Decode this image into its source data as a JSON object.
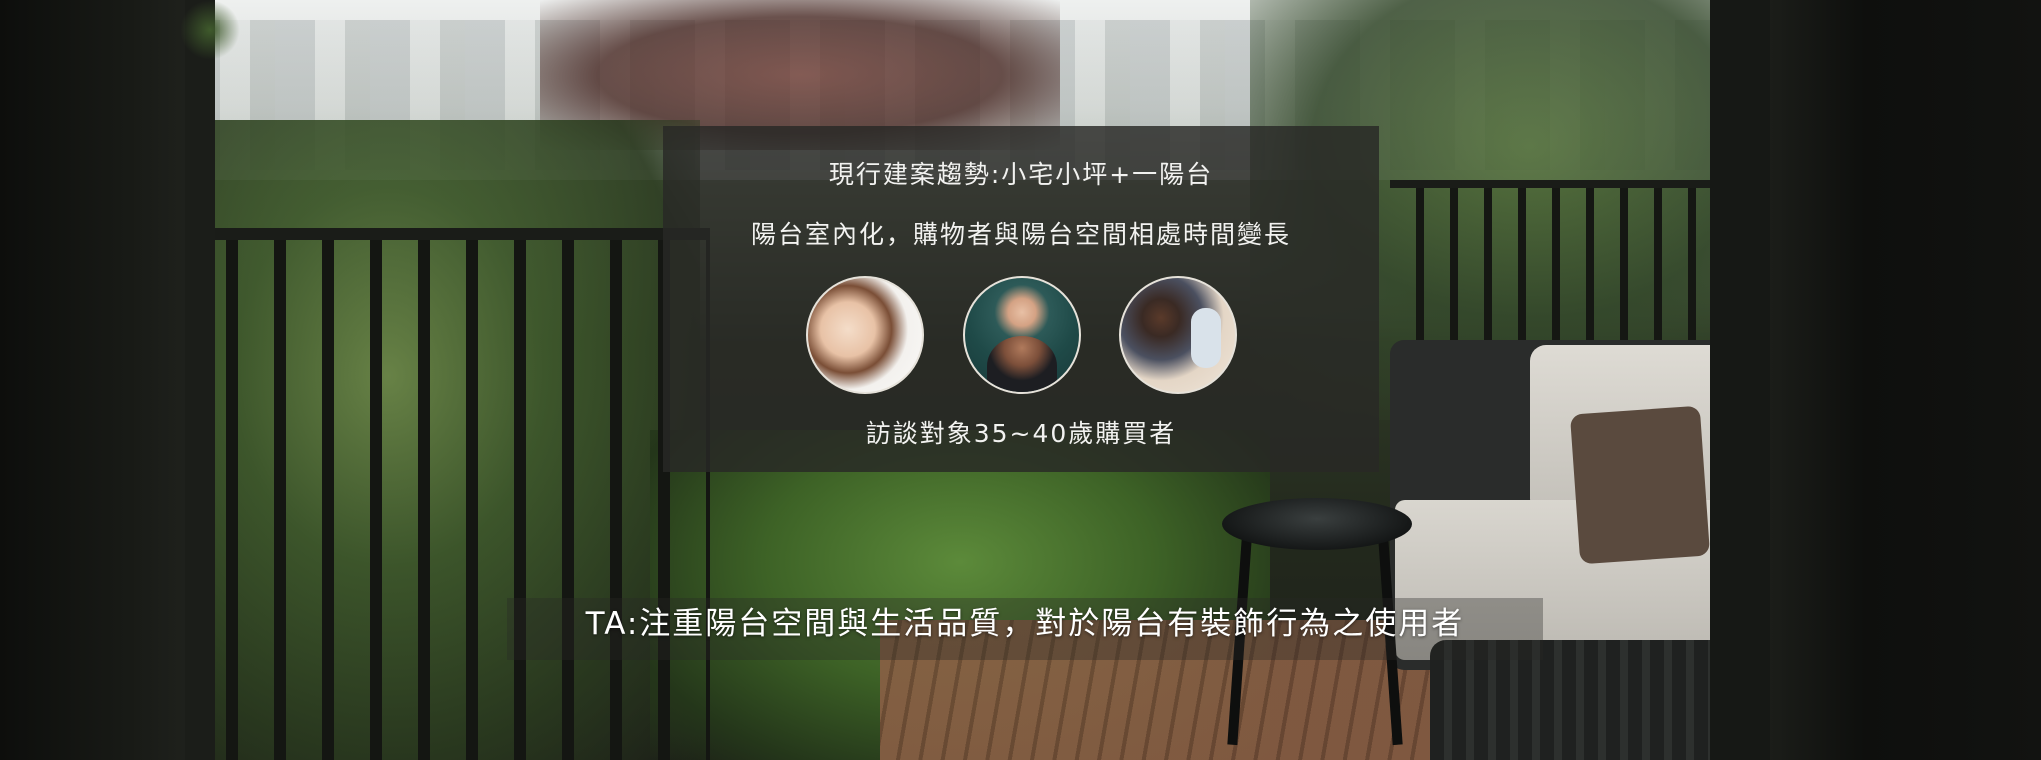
{
  "panel": {
    "title": "現行建案趨勢:小宅小坪+一陽台",
    "subtitle": "陽台室內化，購物者與陽台空間相處時間變長",
    "caption": "訪談對象35~40歲購買者",
    "avatars": [
      {
        "icon": "woman-with-child-photo"
      },
      {
        "icon": "father-carrying-baby-photo"
      },
      {
        "icon": "man-lying-with-baby-photo"
      }
    ]
  },
  "target_audience": {
    "text": "TA:注重陽台空間與生活品質，對於陽台有裝飾行為之使用者"
  },
  "colors": {
    "panel_bg": "#282826",
    "text": "#f2f2f0",
    "avatar_border": "#e6e2da"
  }
}
